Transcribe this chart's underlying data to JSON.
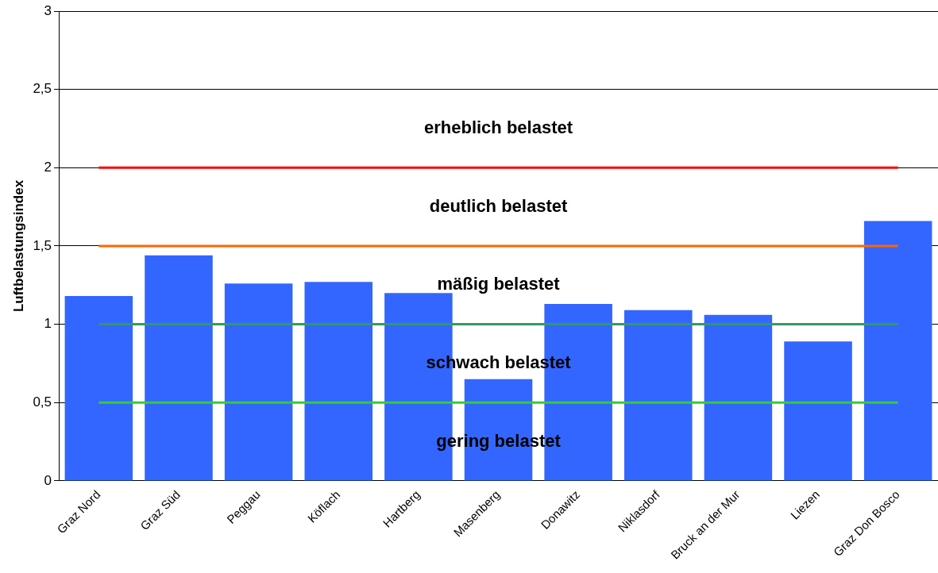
{
  "chart_data": {
    "type": "bar",
    "ylabel": "Luftbelastungsindex",
    "categories": [
      "Graz Nord",
      "Graz Süd",
      "Peggau",
      "Köflach",
      "Hartberg",
      "Masenberg",
      "Donawitz",
      "Niklasdorf",
      "Bruck an der Mur",
      "Liezen",
      "Graz Don Bosco"
    ],
    "values": [
      1.18,
      1.44,
      1.26,
      1.27,
      1.2,
      0.65,
      1.13,
      1.09,
      1.06,
      0.89,
      1.66
    ],
    "color": "#3366ff",
    "ylim": [
      0,
      3
    ],
    "yticks": [
      0,
      {
        "value": 0.5,
        "label": "0,5"
      },
      1,
      {
        "value": 1.5,
        "label": "1,5"
      },
      2,
      {
        "value": 2.5,
        "label": "2,5"
      },
      3
    ],
    "grid": "y",
    "ref_lines": [
      {
        "axis": "y",
        "value": 2,
        "color": "#ff0000"
      },
      {
        "axis": "y",
        "value": 1.5,
        "color": "#ff6600"
      },
      {
        "axis": "y",
        "value": 1,
        "color": "#339966"
      },
      {
        "axis": "y",
        "value": 0.5,
        "color": "#33cc33"
      }
    ],
    "annotations": [
      "erheblich belastet",
      "deutlich belastet",
      "mäßig belastet",
      "schwach belastet",
      "gering belastet"
    ]
  }
}
